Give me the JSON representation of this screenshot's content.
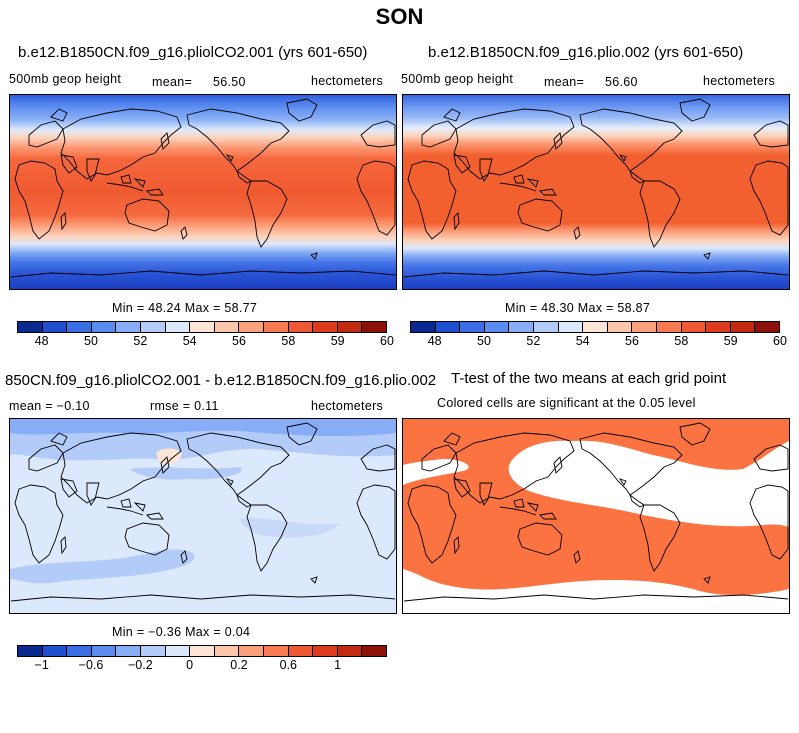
{
  "figure": {
    "title": "SON"
  },
  "panels": {
    "p1": {
      "title": "b.e12.B1850CN.f09_g16.pliolCO2.001 (yrs 601-650)",
      "variable": "500mb geop height",
      "mean_label": "mean=",
      "mean_value": "56.50",
      "units": "hectometers",
      "minmax": "Min =   48.24 Max =   58.77"
    },
    "p2": {
      "title": "b.e12.B1850CN.f09_g16.plio.002 (yrs 601-650)",
      "variable": "500mb geop height",
      "mean_label": "mean=",
      "mean_value": "56.60",
      "units": "hectometers",
      "minmax": "Min =   48.30 Max =   58.87"
    },
    "p3": {
      "title": "850CN.f09_g16.pliolCO2.001 - b.e12.B1850CN.f09_g16.plio.002",
      "mean_text": "mean =   −0.10",
      "rmse_text": "rmse =     0.11",
      "units": "hectometers",
      "minmax": "Min =  −0.36 Max =    0.04"
    },
    "p4": {
      "title": "T-test of the two means at each grid point",
      "subtitle": "Colored cells are significant at the 0.05 level",
      "sig_color": "#fb7340"
    }
  },
  "colorbar_abs": {
    "colors": [
      "#0b2a8f",
      "#1e4fcf",
      "#3a6ee5",
      "#5b8df0",
      "#86adf5",
      "#b2cbf8",
      "#dce8fb",
      "#fde4d4",
      "#fcc6ab",
      "#fba07b",
      "#f87a52",
      "#ee5833",
      "#dd3a1e",
      "#c42a10",
      "#8c1209"
    ],
    "ticks": [
      "48",
      "50",
      "52",
      "54",
      "56",
      "58",
      "59",
      "60"
    ]
  },
  "colorbar_diff": {
    "colors": [
      "#0b2a8f",
      "#1e4fcf",
      "#3a6ee5",
      "#5b8df0",
      "#86adf5",
      "#b2cbf8",
      "#dce8fb",
      "#fde4d4",
      "#fcc6ab",
      "#fba07b",
      "#f87a52",
      "#ee5833",
      "#dd3a1e",
      "#c42a10",
      "#8c1209"
    ],
    "ticks": [
      "−1",
      "−0.6",
      "−0.2",
      "0",
      "0.2",
      "0.6",
      "1"
    ]
  }
}
